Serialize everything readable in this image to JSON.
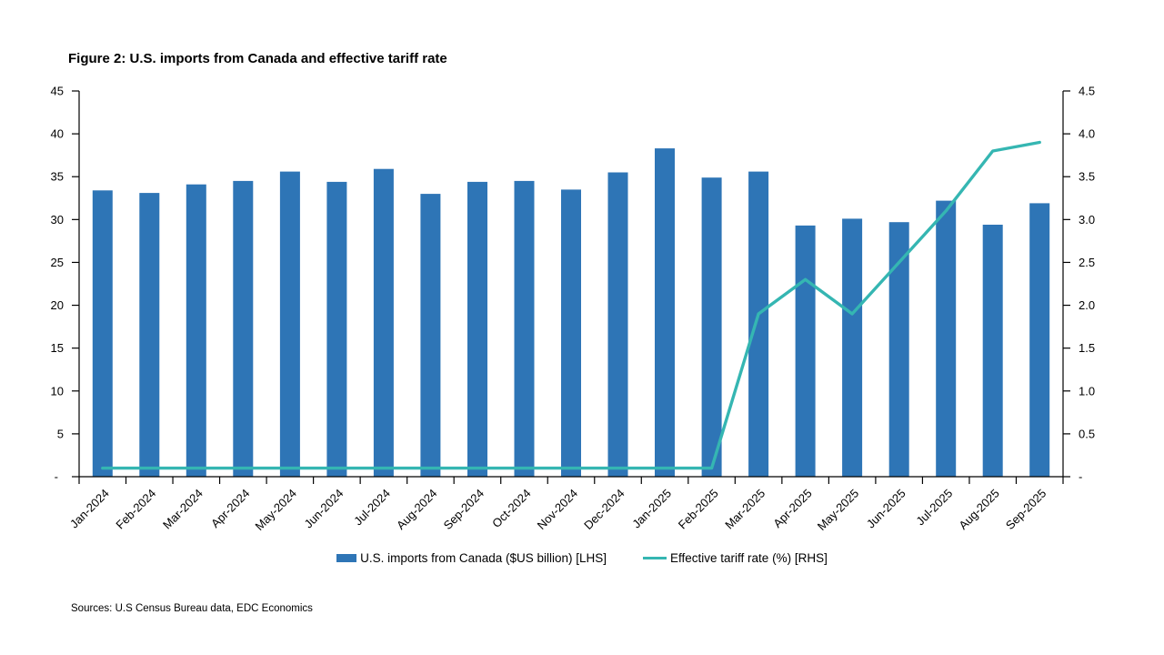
{
  "title": "Figure 2: U.S. imports from Canada and effective tariff rate",
  "source_note": "Sources: U.S Census Bureau data, EDC Economics",
  "legend": [
    {
      "label": "U.S. imports from Canada ($US billion) [LHS]",
      "color": "#2E75B6",
      "swatch": "bar"
    },
    {
      "label": "Effective tariff rate (%) [RHS]",
      "color": "#35B6B2",
      "swatch": "line"
    }
  ],
  "colors": {
    "bar": "#2E75B6",
    "line": "#35B6B2",
    "axis": "#000000",
    "text": "#000000",
    "background": "#ffffff"
  },
  "chart_data": {
    "type": "bar",
    "subtype": "bar+line dual-axis combo",
    "title": "Figure 2: U.S. imports from Canada and effective tariff rate",
    "grid": false,
    "legend_position": "bottom",
    "categories": [
      "Jan-2024",
      "Feb-2024",
      "Mar-2024",
      "Apr-2024",
      "May-2024",
      "Jun-2024",
      "Jul-2024",
      "Aug-2024",
      "Sep-2024",
      "Oct-2024",
      "Nov-2024",
      "Dec-2024",
      "Jan-2025",
      "Feb-2025",
      "Mar-2025",
      "Apr-2025",
      "May-2025",
      "Jun-2025",
      "Jul-2025",
      "Aug-2025",
      "Sep-2025"
    ],
    "series": [
      {
        "name": "U.S. imports from Canada ($US billion) [LHS]",
        "type": "bar",
        "axis": "left",
        "color": "#2E75B6",
        "values": [
          33.4,
          33.1,
          34.1,
          34.5,
          35.6,
          34.4,
          35.9,
          33.0,
          34.4,
          34.5,
          33.5,
          35.5,
          38.3,
          34.9,
          35.6,
          29.3,
          30.1,
          29.7,
          32.2,
          29.4,
          31.9
        ]
      },
      {
        "name": "Effective tariff rate (%) [RHS]",
        "type": "line",
        "axis": "right",
        "color": "#35B6B2",
        "values": [
          0.1,
          0.1,
          0.1,
          0.1,
          0.1,
          0.1,
          0.1,
          0.1,
          0.1,
          0.1,
          0.1,
          0.1,
          0.1,
          0.1,
          1.9,
          2.3,
          1.9,
          2.5,
          3.1,
          3.8,
          3.9
        ]
      }
    ],
    "left_axis": {
      "label": "",
      "min": 0,
      "max": 45,
      "step": 5,
      "tick_labels": [
        "45",
        "40",
        "35",
        "30",
        "25",
        "20",
        "15",
        "10",
        "5",
        "-"
      ]
    },
    "right_axis": {
      "label": "",
      "min": 0,
      "max": 4.5,
      "step": 0.5,
      "tick_labels": [
        "4.5",
        "4.0",
        "3.5",
        "3.0",
        "2.5",
        "2.0",
        "1.5",
        "1.0",
        "0.5",
        "-"
      ]
    }
  }
}
